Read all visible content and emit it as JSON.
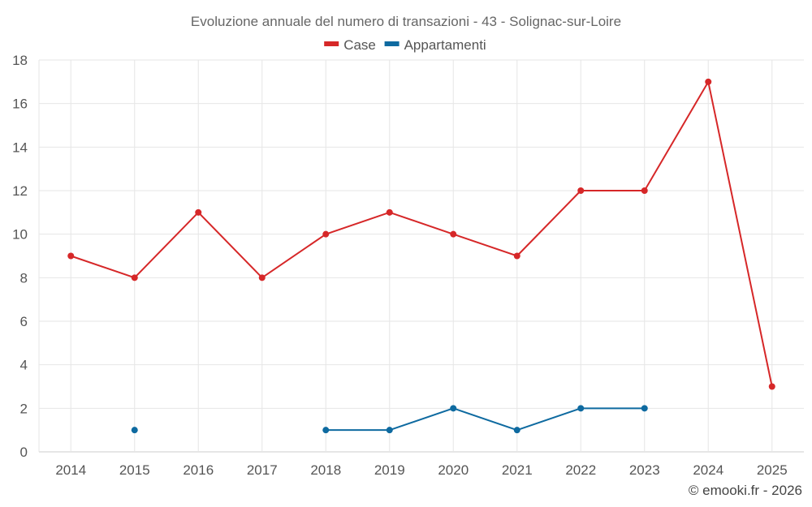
{
  "chart_data": {
    "type": "line",
    "title": "Evoluzione annuale del numero di transazioni - 43 - Solignac-sur-Loire",
    "categories": [
      "2014",
      "2015",
      "2016",
      "2017",
      "2018",
      "2019",
      "2020",
      "2021",
      "2022",
      "2023",
      "2024",
      "2025"
    ],
    "series": [
      {
        "name": "Case",
        "color": "#d62728",
        "values": [
          9,
          8,
          11,
          8,
          10,
          11,
          10,
          9,
          12,
          12,
          17,
          3
        ]
      },
      {
        "name": "Appartamenti",
        "color": "#0e6aa0",
        "values": [
          null,
          1,
          null,
          null,
          1,
          1,
          2,
          1,
          2,
          2,
          null,
          null
        ]
      }
    ],
    "xlabel": "",
    "ylabel": "",
    "ylim": [
      0,
      18
    ],
    "yticks": [
      "0",
      "2",
      "4",
      "6",
      "8",
      "10",
      "12",
      "14",
      "16",
      "18"
    ],
    "grid": true,
    "legend_position": "top-center"
  },
  "footer": "© emooki.fr - 2026"
}
